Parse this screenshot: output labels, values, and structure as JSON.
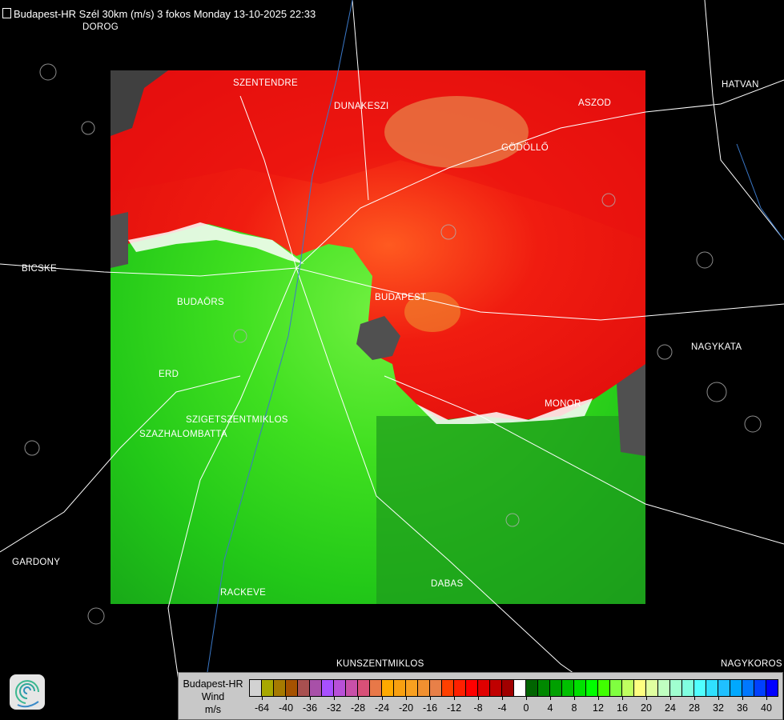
{
  "title": "Budapest-HR Szél 30km (m/s) 3 fokos Monday 13-10-2025 22:33",
  "cities": [
    {
      "name": "DOROG"
    },
    {
      "name": "SZENTENDRE"
    },
    {
      "name": "DUNAKESZI"
    },
    {
      "name": "HATVAN"
    },
    {
      "name": "ASZOD"
    },
    {
      "name": "GÖDÖLLŐ"
    },
    {
      "name": "BICSKE"
    },
    {
      "name": "BUDAÖRS"
    },
    {
      "name": "BUDAPEST"
    },
    {
      "name": "NAGYKATA"
    },
    {
      "name": "ERD"
    },
    {
      "name": "MONOR"
    },
    {
      "name": "SZIGETSZENTMIKLOS"
    },
    {
      "name": "SZAZHALOMBATTA"
    },
    {
      "name": "GARDONY"
    },
    {
      "name": "RACKEVE"
    },
    {
      "name": "DABAS"
    },
    {
      "name": "KUNSZENTMIKLOS"
    },
    {
      "name": "NAGYKOROS"
    }
  ],
  "legend": {
    "station": "Budapest-HR",
    "quantity": "Wind",
    "unit": "m/s",
    "colors": [
      "#d2d2d2",
      "#a8a800",
      "#a67a00",
      "#a65200",
      "#a85050",
      "#a850a8",
      "#a850ff",
      "#b850d8",
      "#c850a8",
      "#d85078",
      "#e87848",
      "#ffaa00",
      "#f8a010",
      "#f8a020",
      "#f09030",
      "#e88048",
      "#ff4000",
      "#ff2000",
      "#ff0000",
      "#e00000",
      "#c00000",
      "#a00000",
      "#ffffff",
      "#006400",
      "#008800",
      "#00a000",
      "#00c000",
      "#00e000",
      "#00ff00",
      "#40ff00",
      "#80ff40",
      "#c0ff60",
      "#ffff80",
      "#e0ffa0",
      "#c0ffc0",
      "#a0ffd0",
      "#80ffe0",
      "#50ffff",
      "#30e0ff",
      "#20c0ff",
      "#00a8ff",
      "#0078ff",
      "#0040ff",
      "#0000ff"
    ],
    "ticks": [
      "-64",
      "-40",
      "-36",
      "-32",
      "-28",
      "-24",
      "-20",
      "-16",
      "-12",
      "-8",
      "-4",
      "0",
      "4",
      "8",
      "12",
      "16",
      "20",
      "24",
      "28",
      "32",
      "36",
      "40"
    ]
  }
}
